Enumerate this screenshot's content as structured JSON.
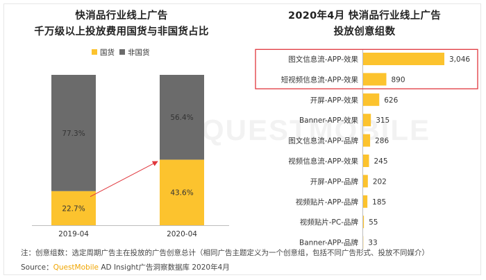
{
  "left_chart": {
    "title_line1": "快消品行业线上广告",
    "title_line2": "千万级以上投放费用国货与非国货占比"
  },
  "right_chart": {
    "title_line1": "2020年4月 快消品行业线上广告",
    "title_line2": "投放创意组数"
  },
  "watermark": "QUESTMOBILE",
  "footer": {
    "note": "注：创意组数：选定周期广告主在投放的广告创意总计（相同广告主题定义为一个创意组，包括不同广告形式、投放不同媒介）",
    "source_prefix": "Source：",
    "source_brand": "QuestMobile",
    "source_rest": " AD Insight广告洞察数据库 2020年4月"
  },
  "colors": {
    "domestic": "#fcc32e",
    "foreign": "#6b6b6b",
    "bar": "#fcc32e",
    "highlight_box": "#e0363c",
    "arrow": "#e0363c"
  },
  "chart_data": [
    {
      "type": "bar",
      "stacked": true,
      "categories": [
        "2019-04",
        "2020-04"
      ],
      "series": [
        {
          "name": "国货",
          "values": [
            22.7,
            43.6
          ],
          "labels": [
            "22.7%",
            "43.6%"
          ]
        },
        {
          "name": "非国货",
          "values": [
            77.3,
            56.4
          ],
          "labels": [
            "77.3%",
            "56.4%"
          ]
        }
      ],
      "legend_position": "top",
      "ylim": [
        0,
        100
      ],
      "annotation": "arrow from 2019-04 domestic segment to 2020-04 domestic segment"
    },
    {
      "type": "bar",
      "orientation": "horizontal",
      "categories": [
        "图文信息流-APP-效果",
        "短视频信息流-APP-效果",
        "开屏-APP-效果",
        "Banner-APP-效果",
        "图文信息流-APP-品牌",
        "视频信息流-APP-效果",
        "开屏-APP-品牌",
        "视频贴片-APP-品牌",
        "视频贴片-PC-品牌",
        "Banner-APP-品牌"
      ],
      "values": [
        3046,
        890,
        626,
        315,
        286,
        245,
        202,
        185,
        55,
        33
      ],
      "labels": [
        "3,046",
        "890",
        "626",
        "315",
        "286",
        "245",
        "202",
        "185",
        "55",
        "33"
      ],
      "highlighted_categories": [
        "图文信息流-APP-效果",
        "短视频信息流-APP-效果"
      ]
    }
  ]
}
